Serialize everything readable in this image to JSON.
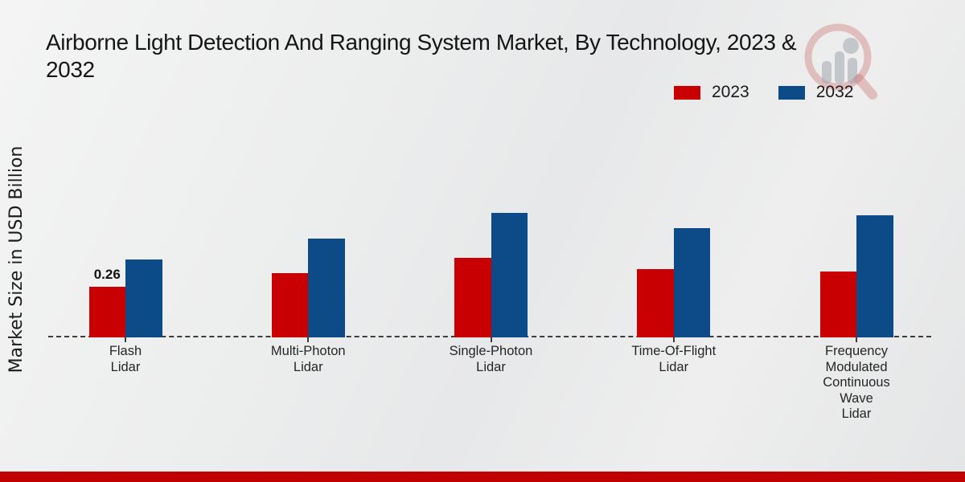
{
  "title": {
    "line1": "Airborne Light Detection And Ranging System Market, By Technology, 2023 &",
    "line2": "2032"
  },
  "axes": {
    "ylabel": "Market Size in USD Billion"
  },
  "legend": {
    "items": [
      {
        "label": "2023",
        "color": "#c90002"
      },
      {
        "label": "2032",
        "color": "#0c4b88"
      }
    ]
  },
  "chart_data": {
    "type": "bar",
    "title": "Airborne Light Detection And Ranging System Market, By Technology, 2023 & 2032",
    "xlabel": "",
    "ylabel": "Market Size in USD Billion",
    "gridlines": false,
    "legend_position": "top-right",
    "baseline_style": "dashed",
    "ylim": [
      0,
      0.75
    ],
    "categories": [
      {
        "label": "Flash Lidar",
        "lines": [
          "Flash",
          "Lidar"
        ]
      },
      {
        "label": "Multi-Photon Lidar",
        "lines": [
          "Multi-Photon",
          "Lidar"
        ]
      },
      {
        "label": "Single-Photon Lidar",
        "lines": [
          "Single-Photon",
          "Lidar"
        ]
      },
      {
        "label": "Time-Of-Flight Lidar",
        "lines": [
          "Time-Of-Flight",
          "Lidar"
        ]
      },
      {
        "label": "Frequency Modulated Continuous Wave Lidar",
        "lines": [
          "Frequency",
          "Modulated",
          "Continuous",
          "Wave",
          "Lidar"
        ]
      }
    ],
    "series": [
      {
        "name": "2023",
        "color": "#c90002",
        "values": [
          0.26,
          0.33,
          0.41,
          0.35,
          0.34
        ]
      },
      {
        "name": "2032",
        "color": "#0c4b88",
        "values": [
          0.4,
          0.51,
          0.64,
          0.56,
          0.63
        ]
      }
    ],
    "data_labels": [
      {
        "series_index": 0,
        "category_index": 0,
        "text": "0.26"
      }
    ]
  },
  "branding": {
    "watermark_icon": "magnifier-bar-chart-logo",
    "footer_color": "#c00000"
  }
}
